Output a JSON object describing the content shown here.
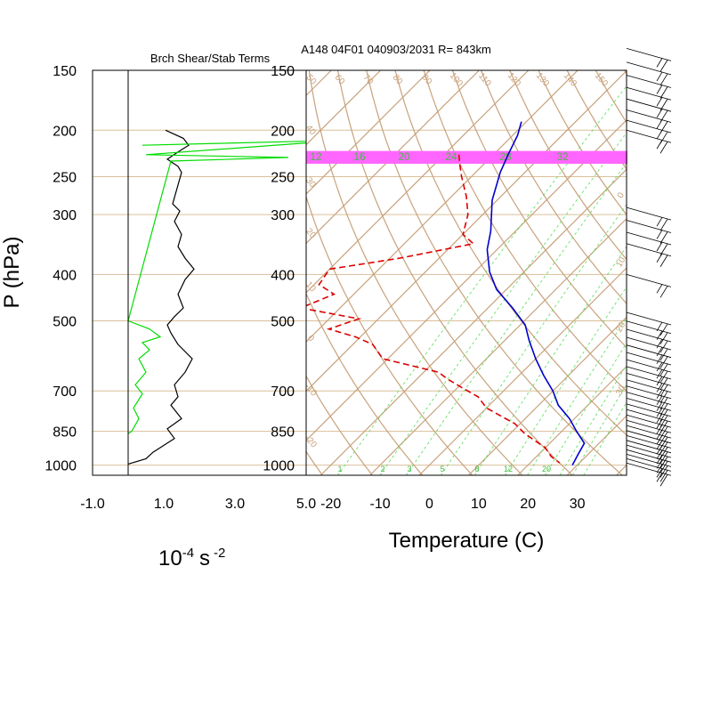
{
  "chart_data": [
    {
      "type": "line",
      "panel": "shear-stability",
      "title": "Brch Shear/Stab Terms",
      "xlabel_base": "10",
      "xlabel_exp1": "-4",
      "xlabel_unit": "s",
      "xlabel_exp2": "-2",
      "ylabel": "P (hPa)",
      "xlim": [
        -1.0,
        5.0
      ],
      "x_ticks": [
        "-1.0",
        "1.0",
        "3.0",
        "5.0"
      ],
      "pressure_ticks": [
        "150",
        "200",
        "250",
        "300",
        "400",
        "500",
        "700",
        "850",
        "1000"
      ],
      "colors": {
        "shear": "#000000",
        "stability": "#00dd00"
      },
      "series": [
        {
          "key": "shear",
          "points": [
            [
              1.05,
              200
            ],
            [
              1.55,
              208
            ],
            [
              1.7,
              215
            ],
            [
              1.4,
              222
            ],
            [
              1.1,
              230
            ],
            [
              1.4,
              238
            ],
            [
              1.5,
              245
            ],
            [
              1.25,
              285
            ],
            [
              1.45,
              295
            ],
            [
              1.3,
              310
            ],
            [
              1.5,
              330
            ],
            [
              1.4,
              350
            ],
            [
              1.6,
              370
            ],
            [
              1.85,
              390
            ],
            [
              1.6,
              410
            ],
            [
              1.4,
              440
            ],
            [
              1.55,
              470
            ],
            [
              1.3,
              490
            ],
            [
              1.1,
              510
            ],
            [
              1.2,
              530
            ],
            [
              1.4,
              560
            ],
            [
              1.8,
              600
            ],
            [
              1.6,
              640
            ],
            [
              1.3,
              680
            ],
            [
              1.4,
              720
            ],
            [
              1.2,
              750
            ],
            [
              1.5,
              800
            ],
            [
              1.1,
              840
            ],
            [
              1.3,
              880
            ],
            [
              0.7,
              940
            ],
            [
              0.5,
              970
            ],
            [
              0.0,
              995
            ]
          ]
        },
        {
          "key": "stability",
          "points": [
            [
              0.4,
              215
            ],
            [
              6.0,
              210
            ],
            [
              0.5,
              225
            ],
            [
              4.5,
              228
            ],
            [
              1.2,
              232
            ],
            [
              0.0,
              500
            ],
            [
              0.6,
              520
            ],
            [
              0.9,
              540
            ],
            [
              0.4,
              555
            ],
            [
              0.6,
              575
            ],
            [
              0.3,
              600
            ],
            [
              0.5,
              640
            ],
            [
              0.2,
              680
            ],
            [
              0.4,
              710
            ],
            [
              0.15,
              760
            ],
            [
              0.3,
              800
            ],
            [
              0.1,
              850
            ],
            [
              0.0,
              860
            ]
          ]
        }
      ]
    },
    {
      "type": "line",
      "panel": "skew-t",
      "title": "A148 04F01 040903/2031 R= 843km",
      "xlabel": "Temperature (C)",
      "xlim": [
        -25,
        40
      ],
      "x_ticks": [
        "-20",
        "-10",
        "0",
        "10",
        "20",
        "30"
      ],
      "pressure_ticks": [
        "150",
        "200",
        "250",
        "300",
        "400",
        "500",
        "700",
        "850",
        "1000"
      ],
      "highlight_band_hpa": [
        221,
        235
      ],
      "colors": {
        "temperature": "#0000cc",
        "dewpoint": "#dd0000",
        "band": "#ff66ff",
        "isotherm": "#c8a27c",
        "dry_adiabat": "#c8a27c",
        "mixing_ratio": "#55dd55"
      },
      "isotherms_c": [
        -100,
        -90,
        -80,
        -70,
        -60,
        -50,
        -40,
        -30,
        -20,
        -10,
        0,
        10,
        20,
        30,
        40
      ],
      "dry_adiabats_theta_k": [
        250,
        260,
        270,
        280,
        290,
        300,
        310,
        320,
        330,
        340,
        350,
        360,
        370,
        380,
        390,
        400,
        410,
        420,
        430,
        440,
        450,
        460,
        470,
        480,
        490,
        500,
        510,
        520
      ],
      "mixing_ratio_lines_gkg": [
        1,
        2,
        3,
        5,
        8,
        12,
        16,
        20,
        24,
        28,
        32
      ],
      "mixing_ratio_labels_top": [
        "12",
        "16",
        "20",
        "24",
        "28",
        "32"
      ],
      "mixing_ratio_labels_bottom": [
        "1",
        "2",
        "3",
        "5",
        "8",
        "12",
        "20"
      ],
      "theta_labels": [
        "50",
        "60",
        "70",
        "80",
        "90",
        "100",
        "110",
        "120",
        "130",
        "140",
        "150"
      ],
      "theta_labels_left": [
        "40",
        "30",
        "20",
        "10",
        "0",
        "-10",
        "-20",
        "-30"
      ],
      "theta_labels_right": [
        "0",
        "10",
        "20",
        "30",
        "40"
      ],
      "series": [
        {
          "key": "temperature",
          "points": [
            [
              -51,
              192
            ],
            [
              -49,
              205
            ],
            [
              -47,
              225
            ],
            [
              -45,
              245
            ],
            [
              -41,
              280
            ],
            [
              -35,
              325
            ],
            [
              -32,
              355
            ],
            [
              -27,
              395
            ],
            [
              -22,
              430
            ],
            [
              -15,
              470
            ],
            [
              -9,
              510
            ],
            [
              -5,
              550
            ],
            [
              0,
              600
            ],
            [
              5,
              650
            ],
            [
              10,
              700
            ],
            [
              14,
              750
            ],
            [
              19,
              800
            ],
            [
              23,
              850
            ],
            [
              27,
              900
            ],
            [
              28,
              950
            ],
            [
              29,
              1000
            ]
          ]
        },
        {
          "key": "dewpoint",
          "points": [
            [
              -57,
              225
            ],
            [
              -55,
              235
            ],
            [
              -52,
              250
            ],
            [
              -47,
              275
            ],
            [
              -43,
              300
            ],
            [
              -40,
              330
            ],
            [
              -36,
              345
            ],
            [
              -48,
              370
            ],
            [
              -60,
              390
            ],
            [
              -59,
              420
            ],
            [
              -54,
              440
            ],
            [
              -58,
              470
            ],
            [
              -44,
              495
            ],
            [
              -48,
              520
            ],
            [
              -41,
              540
            ],
            [
              -36,
              560
            ],
            [
              -31,
              600
            ],
            [
              -17,
              640
            ],
            [
              -14,
              660
            ],
            [
              -9,
              690
            ],
            [
              -4,
              720
            ],
            [
              0,
              760
            ],
            [
              9,
              820
            ],
            [
              13,
              860
            ],
            [
              20,
              920
            ],
            [
              23,
              960
            ],
            [
              26,
              990
            ]
          ]
        }
      ]
    },
    {
      "type": "barbs",
      "panel": "wind",
      "groups": [
        {
          "p_top": 135,
          "p_bot": 200,
          "count": 8
        },
        {
          "p_top": 290,
          "p_bot": 345,
          "count": 4
        },
        {
          "p_top": 400,
          "p_bot": 410,
          "count": 1
        },
        {
          "p_top": 480,
          "p_bot": 990,
          "count": 26
        }
      ]
    }
  ]
}
